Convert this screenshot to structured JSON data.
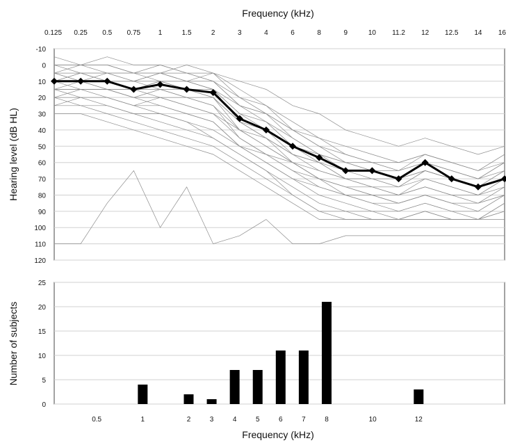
{
  "chart_data": [
    {
      "type": "line",
      "title": "",
      "xlabel": "Frequency (kHz)",
      "ylabel": "Hearing level (dB HL)",
      "x_ticks": [
        "0.125",
        "0.25",
        "0.5",
        "0.75",
        "1",
        "1.5",
        "2",
        "3",
        "4",
        "6",
        "8",
        "9",
        "10",
        "11.2",
        "12",
        "12.5",
        "14",
        "16"
      ],
      "y_ticks": [
        "-10",
        "0",
        "10",
        "20",
        "30",
        "40",
        "50",
        "60",
        "70",
        "80",
        "90",
        "100",
        "110",
        "120"
      ],
      "ylim": [
        -10,
        120
      ],
      "y_inverted": true,
      "grid": true,
      "colors": {
        "mean": "#000000",
        "individual": "#8c8c8c"
      },
      "series": [
        {
          "name": "",
          "role": "mean",
          "x": [
            "0.125",
            "0.25",
            "0.5",
            "0.75",
            "1",
            "1.5",
            "2",
            "3",
            "4",
            "6",
            "8",
            "9",
            "10",
            "11.2",
            "12",
            "12.5",
            "14",
            "16"
          ],
          "values": [
            10,
            10,
            10,
            15,
            12,
            15,
            17,
            33,
            40,
            50,
            57,
            65,
            65,
            70,
            60,
            70,
            75,
            70
          ]
        }
      ],
      "individual_thresholds": [
        [
          10,
          5,
          5,
          10,
          5,
          10,
          5,
          20,
          30,
          40,
          45,
          50,
          55,
          60,
          55,
          60,
          65,
          60
        ],
        [
          5,
          10,
          15,
          20,
          15,
          20,
          25,
          45,
          55,
          65,
          70,
          80,
          85,
          90,
          85,
          90,
          95,
          85
        ],
        [
          15,
          15,
          20,
          25,
          25,
          30,
          35,
          50,
          60,
          70,
          80,
          85,
          90,
          90,
          85,
          90,
          90,
          80
        ],
        [
          0,
          0,
          0,
          5,
          0,
          5,
          10,
          25,
          35,
          50,
          60,
          70,
          75,
          80,
          70,
          75,
          80,
          70
        ],
        [
          20,
          20,
          25,
          30,
          35,
          40,
          45,
          55,
          65,
          75,
          85,
          90,
          90,
          95,
          90,
          95,
          95,
          90
        ],
        [
          10,
          10,
          5,
          5,
          10,
          10,
          15,
          30,
          40,
          55,
          65,
          70,
          70,
          75,
          65,
          70,
          75,
          65
        ],
        [
          5,
          5,
          10,
          10,
          5,
          5,
          10,
          20,
          25,
          35,
          45,
          55,
          60,
          65,
          60,
          65,
          70,
          60
        ],
        [
          25,
          25,
          30,
          35,
          40,
          45,
          50,
          60,
          70,
          80,
          90,
          95,
          95,
          95,
          95,
          95,
          95,
          90
        ],
        [
          10,
          15,
          15,
          20,
          20,
          25,
          30,
          40,
          50,
          60,
          70,
          75,
          80,
          85,
          80,
          85,
          85,
          80
        ],
        [
          0,
          5,
          5,
          5,
          5,
          10,
          15,
          35,
          45,
          55,
          60,
          65,
          70,
          70,
          65,
          70,
          75,
          70
        ],
        [
          15,
          10,
          10,
          15,
          15,
          20,
          20,
          35,
          40,
          50,
          55,
          65,
          65,
          70,
          60,
          65,
          70,
          65
        ],
        [
          20,
          25,
          25,
          30,
          30,
          35,
          40,
          50,
          60,
          70,
          75,
          80,
          85,
          85,
          80,
          85,
          90,
          80
        ],
        [
          110,
          110,
          85,
          65,
          100,
          75,
          110,
          105,
          95,
          110,
          110,
          105,
          105,
          105,
          105,
          105,
          105,
          105
        ],
        [
          5,
          0,
          0,
          5,
          5,
          0,
          5,
          10,
          15,
          25,
          30,
          40,
          45,
          50,
          45,
          50,
          55,
          50
        ],
        [
          10,
          10,
          15,
          15,
          10,
          15,
          20,
          35,
          45,
          60,
          70,
          75,
          80,
          80,
          75,
          80,
          85,
          75
        ],
        [
          15,
          20,
          20,
          25,
          20,
          25,
          30,
          45,
          55,
          65,
          75,
          80,
          80,
          85,
          80,
          85,
          85,
          80
        ],
        [
          -5,
          0,
          -5,
          0,
          0,
          5,
          5,
          15,
          25,
          40,
          50,
          60,
          60,
          65,
          55,
          60,
          65,
          55
        ],
        [
          30,
          30,
          35,
          40,
          45,
          50,
          55,
          65,
          75,
          85,
          95,
          95,
          95,
          95,
          95,
          95,
          95,
          95
        ],
        [
          10,
          5,
          10,
          10,
          15,
          15,
          20,
          40,
          50,
          60,
          65,
          70,
          75,
          75,
          70,
          75,
          80,
          70
        ],
        [
          5,
          10,
          10,
          15,
          10,
          15,
          15,
          30,
          35,
          45,
          55,
          60,
          65,
          70,
          65,
          70,
          75,
          65
        ],
        [
          20,
          15,
          15,
          20,
          25,
          30,
          35,
          50,
          55,
          60,
          70,
          75,
          75,
          80,
          75,
          80,
          80,
          75
        ],
        [
          0,
          0,
          5,
          10,
          5,
          10,
          10,
          25,
          30,
          45,
          55,
          60,
          65,
          65,
          60,
          65,
          70,
          60
        ],
        [
          15,
          15,
          15,
          15,
          20,
          20,
          25,
          40,
          45,
          55,
          60,
          70,
          70,
          75,
          65,
          70,
          75,
          70
        ],
        [
          25,
          20,
          20,
          25,
          30,
          35,
          45,
          55,
          65,
          80,
          90,
          90,
          95,
          95,
          90,
          95,
          95,
          85
        ],
        [
          10,
          10,
          10,
          10,
          10,
          10,
          15,
          25,
          30,
          40,
          50,
          55,
          60,
          60,
          55,
          60,
          65,
          55
        ]
      ]
    },
    {
      "type": "bar",
      "title": "",
      "xlabel": "Frequency (kHz)",
      "ylabel": "Number of subjects",
      "x_ticks": [
        "0.5",
        "1",
        "2",
        "3",
        "4",
        "5",
        "6",
        "7",
        "8",
        "10",
        "12"
      ],
      "y_ticks": [
        "0",
        "5",
        "10",
        "15",
        "20",
        "25"
      ],
      "ylim": [
        0,
        25
      ],
      "grid": true,
      "colors": {
        "bar": "#000000"
      },
      "categories": [
        "0.5",
        "1",
        "2",
        "3",
        "4",
        "5",
        "6",
        "7",
        "8",
        "10",
        "12"
      ],
      "values": [
        0,
        4,
        2,
        1,
        7,
        7,
        11,
        11,
        21,
        0,
        3
      ]
    }
  ]
}
